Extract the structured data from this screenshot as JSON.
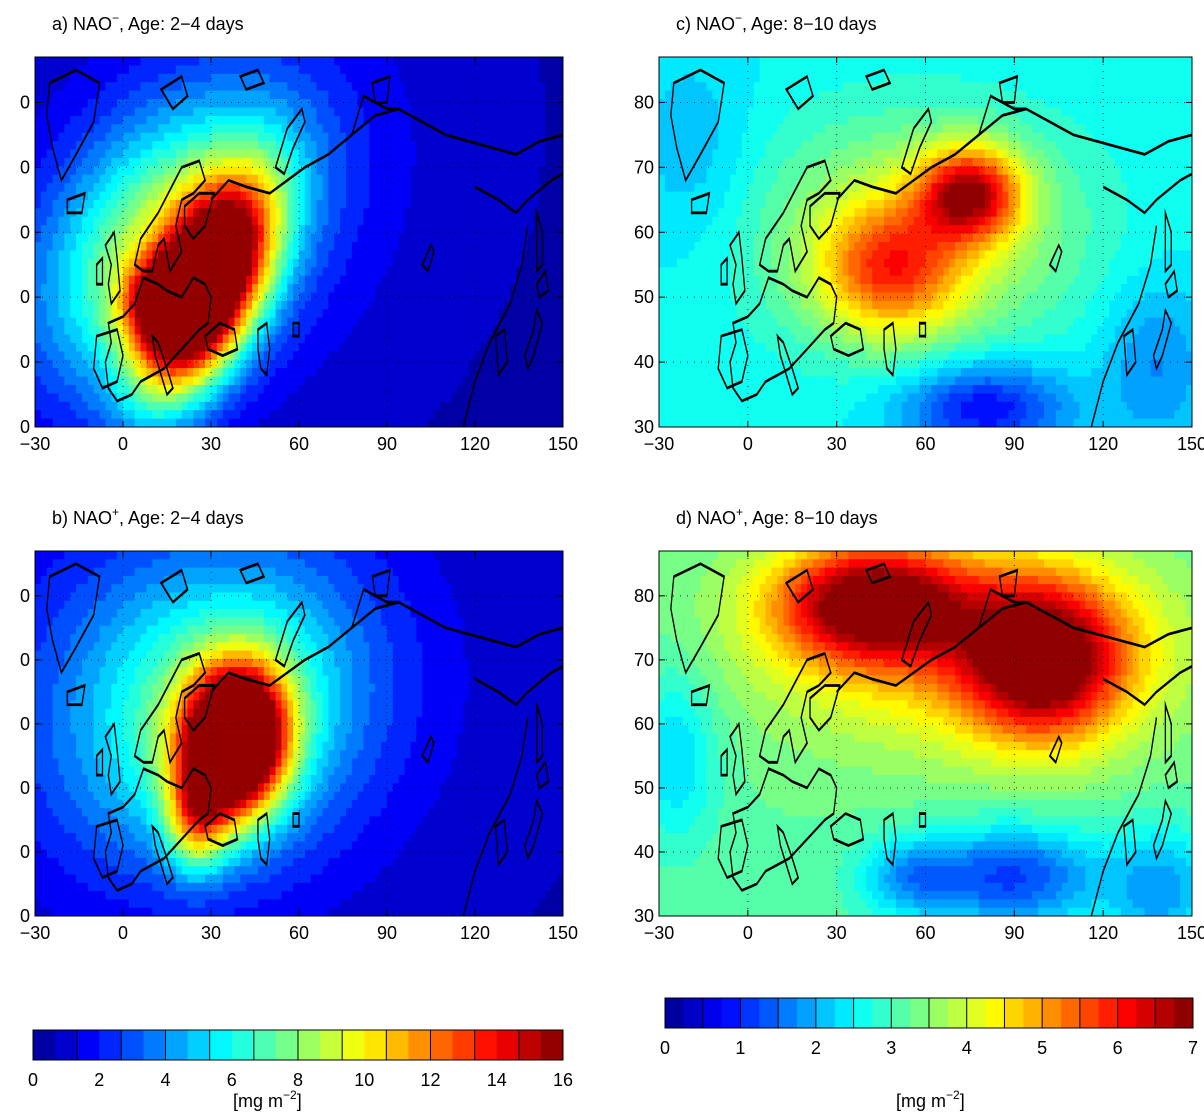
{
  "chart_data": [
    {
      "type": "heatmap",
      "panel": "a",
      "title_prefix": "a) NAO",
      "title_sup": "−",
      "title_suffix": ", Age: 2−4 days",
      "x_ticks": [
        "−30",
        "0",
        "30",
        "60",
        "90",
        "120",
        "150"
      ],
      "y_ticks": [
        "0",
        "0",
        "0",
        "0",
        "0",
        "0"
      ],
      "xlim": [
        -30,
        150
      ],
      "ylim": [
        30,
        87
      ],
      "color_scale": "bar1",
      "blobs": [
        {
          "lon": 28,
          "lat": 51,
          "w": 24,
          "h": 12,
          "amp": 17,
          "tilt": 0.5
        },
        {
          "lon": 14,
          "lat": 49,
          "w": 13,
          "h": 6,
          "amp": 7,
          "tilt": 0
        },
        {
          "lon": 12,
          "lat": 58,
          "w": 42,
          "h": 18,
          "amp": 6,
          "tilt": 0.25
        },
        {
          "lon": 30,
          "lat": 63,
          "w": 60,
          "h": 28,
          "amp": 2.6,
          "tilt": 0.15
        }
      ]
    },
    {
      "type": "heatmap",
      "panel": "b",
      "title_prefix": "b) NAO",
      "title_sup": "+",
      "title_suffix": ", Age: 2−4 days",
      "x_ticks": [
        "−30",
        "0",
        "30",
        "60",
        "90",
        "120",
        "150"
      ],
      "y_ticks": [
        "0",
        "0",
        "0",
        "0",
        "0",
        "0"
      ],
      "xlim": [
        -30,
        150
      ],
      "ylim": [
        30,
        87
      ],
      "color_scale": "bar1",
      "blobs": [
        {
          "lon": 38,
          "lat": 57,
          "w": 17,
          "h": 11,
          "amp": 19,
          "tilt": 0.1
        },
        {
          "lon": 25,
          "lat": 45,
          "w": 10,
          "h": 8,
          "amp": 6,
          "tilt": 0
        },
        {
          "lon": 32,
          "lat": 62,
          "w": 48,
          "h": 22,
          "amp": 5,
          "tilt": 0.1
        },
        {
          "lon": 25,
          "lat": 66,
          "w": 75,
          "h": 32,
          "amp": 2.4,
          "tilt": 0
        }
      ]
    },
    {
      "type": "heatmap",
      "panel": "c",
      "title_prefix": "c) NAO",
      "title_sup": "−",
      "title_suffix": ", Age: 8−10 days",
      "x_ticks": [
        "−30",
        "0",
        "30",
        "60",
        "90",
        "120",
        "150"
      ],
      "y_ticks": [
        "30",
        "40",
        "50",
        "60",
        "70",
        "80"
      ],
      "xlim": [
        -30,
        150
      ],
      "ylim": [
        30,
        87
      ],
      "color_scale": "bar2",
      "base": 2.5,
      "blobs": [
        {
          "lon": 75,
          "lat": 66,
          "w": 17,
          "h": 7,
          "amp": 3.3,
          "tilt": 0
        },
        {
          "lon": 48,
          "lat": 54,
          "w": 24,
          "h": 10,
          "amp": 2.2,
          "tilt": 0
        },
        {
          "lon": 58,
          "lat": 60,
          "w": 55,
          "h": 18,
          "amp": 1.5,
          "tilt": 0
        },
        {
          "lon": 80,
          "lat": 33,
          "w": 28,
          "h": 7,
          "amp": -1.8,
          "tilt": 0
        },
        {
          "lon": 138,
          "lat": 40,
          "w": 18,
          "h": 13,
          "amp": -0.8,
          "tilt": 0
        },
        {
          "lon": -18,
          "lat": 72,
          "w": 20,
          "h": 16,
          "amp": -0.5,
          "tilt": 0
        }
      ]
    },
    {
      "type": "heatmap",
      "panel": "d",
      "title_prefix": "d) NAO",
      "title_sup": "+",
      "title_suffix": ", Age: 8−10 days",
      "x_ticks": [
        "−30",
        "0",
        "30",
        "60",
        "90",
        "120",
        "150"
      ],
      "y_ticks": [
        "30",
        "40",
        "50",
        "60",
        "70",
        "80"
      ],
      "xlim": [
        -30,
        150
      ],
      "ylim": [
        30,
        87
      ],
      "color_scale": "bar2",
      "base": 3.2,
      "blobs": [
        {
          "lon": 42,
          "lat": 79,
          "w": 32,
          "h": 9,
          "amp": 3.7,
          "tilt": 0
        },
        {
          "lon": 100,
          "lat": 70,
          "w": 26,
          "h": 12,
          "amp": 3.6,
          "tilt": 0
        },
        {
          "lon": 75,
          "lat": 72,
          "w": 70,
          "h": 16,
          "amp": 1.6,
          "tilt": 0
        },
        {
          "lon": 90,
          "lat": 36,
          "w": 30,
          "h": 8,
          "amp": -2.0,
          "tilt": 0
        },
        {
          "lon": 55,
          "lat": 36,
          "w": 18,
          "h": 6,
          "amp": -1.2,
          "tilt": 0
        },
        {
          "lon": 140,
          "lat": 34,
          "w": 18,
          "h": 10,
          "amp": -1.3,
          "tilt": 0
        },
        {
          "lon": -24,
          "lat": 55,
          "w": 14,
          "h": 14,
          "amp": -1.0,
          "tilt": 0
        }
      ]
    }
  ],
  "colorbars": [
    {
      "id": "bar1",
      "min": 0,
      "max": 16,
      "levels": 24,
      "tick_labels": [
        "0",
        "2",
        "4",
        "6",
        "8",
        "10",
        "12",
        "14",
        "16"
      ],
      "unit_main": "[mg m",
      "unit_sup": "−2",
      "unit_end": "]"
    },
    {
      "id": "bar2",
      "min": 0,
      "max": 7,
      "levels": 28,
      "tick_labels": [
        "0",
        "1",
        "2",
        "3",
        "4",
        "5",
        "6",
        "7"
      ],
      "unit_main": "[mg m",
      "unit_sup": "−2",
      "unit_end": "]"
    }
  ],
  "colormap": [
    "#00008f",
    "#0000ff",
    "#00ffff",
    "#ffff00",
    "#ff0000",
    "#800000"
  ]
}
